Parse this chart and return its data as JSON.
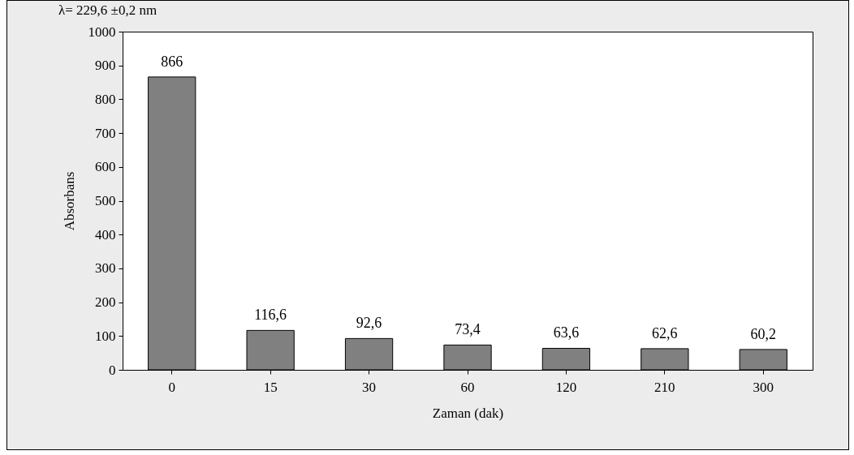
{
  "chart_data": {
    "type": "bar",
    "title": "λ= 229,6 ±0,2 nm",
    "xlabel": "Zaman (dak)",
    "ylabel": "Absorbans",
    "categories": [
      "0",
      "15",
      "30",
      "60",
      "120",
      "210",
      "300"
    ],
    "values": [
      866,
      116.6,
      92.6,
      73.4,
      63.6,
      62.6,
      60.2
    ],
    "value_labels": [
      "866",
      "116,6",
      "92,6",
      "73,4",
      "63,6",
      "62,6",
      "60,2"
    ],
    "color": "#808080",
    "ylim": [
      0,
      1000
    ],
    "yticks": [
      0,
      100,
      200,
      300,
      400,
      500,
      600,
      700,
      800,
      900,
      1000
    ],
    "grid": false
  }
}
